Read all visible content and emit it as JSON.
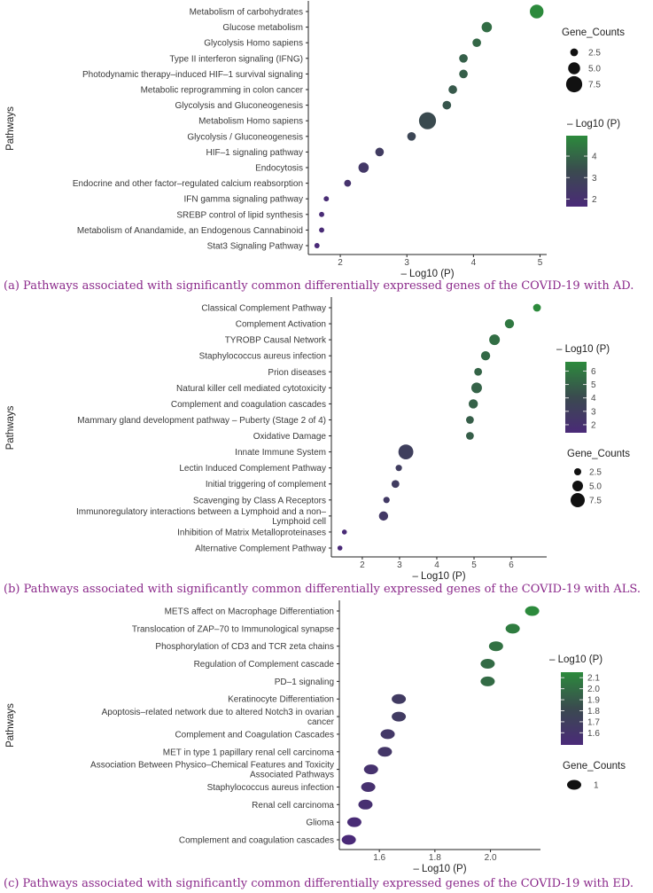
{
  "chart_data": [
    {
      "type": "scatter",
      "caption": "(a) Pathways associated with significantly common differentially expressed genes of the COVID-19 with AD.",
      "xlabel": "– Log10 (P)",
      "ylabel": "Pathways",
      "xlim": [
        1.52,
        5.1
      ],
      "xticks": [
        2,
        3,
        4,
        5
      ],
      "colorbar": {
        "title": "– Log10 (P)",
        "range": [
          1.65,
          4.95
        ],
        "ticks": [
          2,
          3,
          4
        ]
      },
      "size_legend": {
        "title": "Gene_Counts",
        "values": [
          2.5,
          5.0,
          7.5
        ],
        "labels": [
          "2.5",
          "5.0",
          "7.5"
        ]
      },
      "points": [
        {
          "pathway": "Metabolism of carbohydrates",
          "x": 4.95,
          "count": 6
        },
        {
          "pathway": "Glucose metabolism",
          "x": 4.2,
          "count": 4
        },
        {
          "pathway": "Glycolysis Homo sapiens",
          "x": 4.05,
          "count": 3
        },
        {
          "pathway": "Type II interferon signaling (IFNG)",
          "x": 3.85,
          "count": 3
        },
        {
          "pathway": "Photodynamic therapy–induced HIF–1 survival signaling",
          "x": 3.85,
          "count": 3
        },
        {
          "pathway": "Metabolic reprogramming in colon cancer",
          "x": 3.69,
          "count": 3
        },
        {
          "pathway": "Glycolysis and Gluconeogenesis",
          "x": 3.6,
          "count": 3
        },
        {
          "pathway": "Metabolism Homo sapiens",
          "x": 3.31,
          "count": 8
        },
        {
          "pathway": "Glycolysis / Gluconeogenesis",
          "x": 3.07,
          "count": 3
        },
        {
          "pathway": "HIF–1 signaling pathway",
          "x": 2.59,
          "count": 3
        },
        {
          "pathway": "Endocytosis",
          "x": 2.35,
          "count": 4
        },
        {
          "pathway": "Endocrine and other factor–regulated calcium reabsorption",
          "x": 2.11,
          "count": 2
        },
        {
          "pathway": "IFN gamma signaling pathway",
          "x": 1.79,
          "count": 1
        },
        {
          "pathway": "SREBP control of lipid synthesis",
          "x": 1.72,
          "count": 1
        },
        {
          "pathway": "Metabolism of Anandamide, an Endogenous Cannabinoid",
          "x": 1.72,
          "count": 1
        },
        {
          "pathway": "Stat3 Signaling Pathway",
          "x": 1.65,
          "count": 1
        }
      ]
    },
    {
      "type": "scatter",
      "caption": "(b) Pathways associated with significantly common differentially expressed genes of the COVID-19 with ALS.",
      "xlabel": "– Log10 (P)",
      "ylabel": "Pathways",
      "xlim": [
        1.17,
        6.95
      ],
      "xticks": [
        2,
        3,
        4,
        5,
        6
      ],
      "colorbar": {
        "title": "– Log10 (P)",
        "range": [
          1.4,
          6.69
        ],
        "ticks": [
          2,
          3,
          4,
          5,
          6
        ]
      },
      "size_legend": {
        "title": "Gene_Counts",
        "values": [
          2.5,
          5.0,
          7.5
        ],
        "labels": [
          "2.5",
          "5.0",
          "7.5"
        ]
      },
      "points": [
        {
          "pathway": "Classical Complement Pathway",
          "x": 6.69,
          "count": 3
        },
        {
          "pathway": "Complement Activation",
          "x": 5.95,
          "count": 4
        },
        {
          "pathway": "TYROBP Causal Network",
          "x": 5.55,
          "count": 5
        },
        {
          "pathway": "Staphylococcus aureus infection",
          "x": 5.31,
          "count": 4
        },
        {
          "pathway": "Prion diseases",
          "x": 5.11,
          "count": 3
        },
        {
          "pathway": "Natural killer cell mediated cytotoxicity",
          "x": 5.07,
          "count": 5
        },
        {
          "pathway": "Complement and coagulation cascades",
          "x": 4.98,
          "count": 4
        },
        {
          "pathway": "Mammary gland development pathway – Puberty (Stage 2 of 4)",
          "x": 4.89,
          "count": 3
        },
        {
          "pathway": "Oxidative Damage",
          "x": 4.89,
          "count": 3
        },
        {
          "pathway": "Innate Immune System",
          "x": 3.17,
          "count": 8
        },
        {
          "pathway": "Lectin Induced Complement Pathway",
          "x": 2.98,
          "count": 2
        },
        {
          "pathway": "Initial triggering of complement",
          "x": 2.89,
          "count": 3
        },
        {
          "pathway": "Scavenging by Class A Receptors",
          "x": 2.65,
          "count": 2
        },
        {
          "pathway": "Immunoregulatory interactions between a Lymphoid and a non–\nLymphoid cell",
          "x": 2.57,
          "count": 4
        },
        {
          "pathway": "Inhibition of Matrix Metalloproteinases",
          "x": 1.52,
          "count": 1
        },
        {
          "pathway": "Alternative Complement Pathway",
          "x": 1.4,
          "count": 1
        }
      ]
    },
    {
      "type": "scatter",
      "caption": "(c) Pathways associated with significantly common differentially expressed genes of the COVID-19 with ED.",
      "xlabel": "– Log10 (P)",
      "ylabel": "Pathways",
      "xlim": [
        1.456,
        2.18
      ],
      "xticks": [
        1.6,
        1.8,
        2.0
      ],
      "xtick_labels": [
        "1.6",
        "1.8",
        "2.0"
      ],
      "colorbar": {
        "title": "– Log10 (P)",
        "range": [
          1.49,
          2.15
        ],
        "ticks": [
          1.6,
          1.7,
          1.8,
          1.9,
          2.0,
          2.1
        ],
        "tick_labels": [
          "1.6",
          "1.7",
          "1.8",
          "1.9",
          "2.0",
          "2.1"
        ]
      },
      "size_legend": {
        "title": "Gene_Counts",
        "values": [
          1
        ],
        "labels": [
          "1"
        ]
      },
      "points": [
        {
          "pathway": "METS affect on Macrophage Differentiation",
          "x": 2.15,
          "count": 1
        },
        {
          "pathway": "Translocation of ZAP–70 to Immunological synapse",
          "x": 2.08,
          "count": 1
        },
        {
          "pathway": "Phosphorylation of CD3 and TCR zeta chains",
          "x": 2.02,
          "count": 1
        },
        {
          "pathway": "Regulation of Complement cascade",
          "x": 1.99,
          "count": 1
        },
        {
          "pathway": "PD–1 signaling",
          "x": 1.99,
          "count": 1
        },
        {
          "pathway": "Keratinocyte Differentiation",
          "x": 1.67,
          "count": 1
        },
        {
          "pathway": "Apoptosis–related network due to altered Notch3 in ovarian\ncancer",
          "x": 1.67,
          "count": 1
        },
        {
          "pathway": "Complement and Coagulation Cascades",
          "x": 1.63,
          "count": 1
        },
        {
          "pathway": "MET in type 1 papillary renal cell carcinoma",
          "x": 1.62,
          "count": 1
        },
        {
          "pathway": "Association Between Physico–Chemical Features and Toxicity\nAssociated Pathways",
          "x": 1.57,
          "count": 1
        },
        {
          "pathway": "Staphylococcus aureus infection",
          "x": 1.56,
          "count": 1
        },
        {
          "pathway": "Renal cell carcinoma",
          "x": 1.55,
          "count": 1
        },
        {
          "pathway": "Glioma",
          "x": 1.51,
          "count": 1
        },
        {
          "pathway": "Complement and coagulation cascades",
          "x": 1.49,
          "count": 1
        }
      ]
    }
  ],
  "colors": {
    "low": "#4a2a78",
    "mid": "#3a4a4f",
    "high": "#2c8a3c",
    "caption": "#8b2a8b"
  }
}
